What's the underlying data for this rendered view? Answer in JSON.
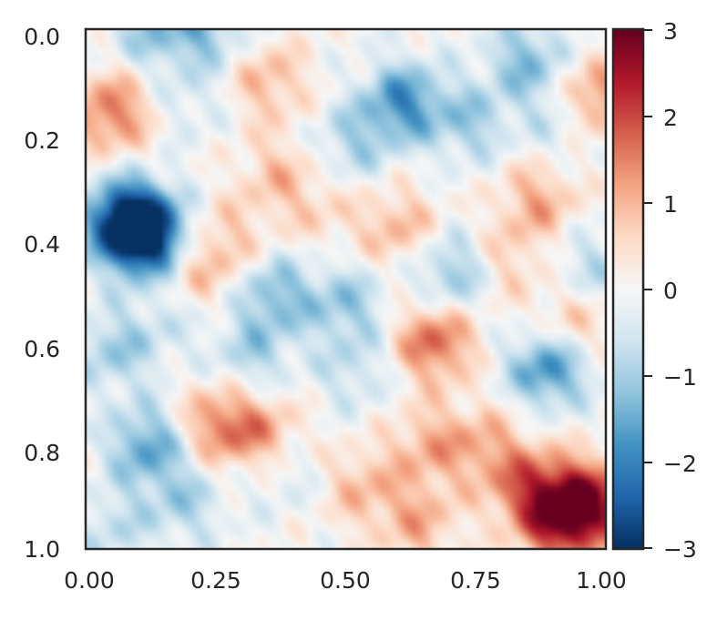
{
  "chart_data": {
    "type": "heatmap",
    "title": "",
    "xlabel": "",
    "ylabel": "",
    "xlim": [
      0.0,
      1.0
    ],
    "ylim": [
      1.0,
      0.0
    ],
    "x_ticks": [
      "0.00",
      "0.25",
      "0.50",
      "0.75",
      "1.00"
    ],
    "y_ticks": [
      "0.0",
      "0.2",
      "0.4",
      "0.6",
      "0.8",
      "1.0"
    ],
    "colormap": "RdBu_r",
    "color_range": [
      -3,
      3
    ],
    "colorbar": {
      "ticks": [
        "3",
        "2",
        "1",
        "0",
        "−1",
        "−2",
        "−3"
      ],
      "values": [
        3,
        2,
        1,
        0,
        -1,
        -2,
        -3
      ]
    },
    "grid": false,
    "features": [
      {
        "x": 0.08,
        "y": 0.37,
        "value": -3.0
      },
      {
        "x": 0.12,
        "y": 0.4,
        "value": -2.5
      },
      {
        "x": 0.05,
        "y": 0.16,
        "value": 1.6
      },
      {
        "x": 0.97,
        "y": 0.14,
        "value": 2.0
      },
      {
        "x": 0.96,
        "y": 0.91,
        "value": 2.6
      },
      {
        "x": 0.85,
        "y": 0.88,
        "value": 1.5
      },
      {
        "x": 0.91,
        "y": 0.95,
        "value": 1.8
      },
      {
        "x": 0.67,
        "y": 0.6,
        "value": 1.8
      },
      {
        "x": 0.89,
        "y": 0.65,
        "value": -2.0
      },
      {
        "x": 0.61,
        "y": 0.14,
        "value": -1.8
      },
      {
        "x": 0.74,
        "y": 0.18,
        "value": -1.0
      },
      {
        "x": 0.85,
        "y": 0.06,
        "value": -1.3
      },
      {
        "x": 0.93,
        "y": 0.17,
        "value": -1.2
      },
      {
        "x": 0.35,
        "y": 0.1,
        "value": 1.0
      },
      {
        "x": 0.23,
        "y": 0.0,
        "value": -1.2
      },
      {
        "x": 0.12,
        "y": 0.0,
        "value": -1.0
      },
      {
        "x": 0.6,
        "y": 0.38,
        "value": 1.0
      },
      {
        "x": 0.37,
        "y": 0.28,
        "value": 0.8
      },
      {
        "x": 0.87,
        "y": 0.33,
        "value": 1.1
      },
      {
        "x": 0.25,
        "y": 0.76,
        "value": 1.4
      },
      {
        "x": 0.34,
        "y": 0.78,
        "value": 1.2
      },
      {
        "x": 0.12,
        "y": 0.8,
        "value": -1.6
      },
      {
        "x": 0.05,
        "y": 0.62,
        "value": -1.0
      },
      {
        "x": 0.38,
        "y": 0.85,
        "value": -0.6
      },
      {
        "x": 0.36,
        "y": 0.51,
        "value": -1.3
      },
      {
        "x": 0.71,
        "y": 0.47,
        "value": -1.4
      },
      {
        "x": 0.5,
        "y": 0.53,
        "value": -1.1
      },
      {
        "x": 0.32,
        "y": 0.63,
        "value": -0.9
      },
      {
        "x": 0.52,
        "y": 0.66,
        "value": -0.7
      },
      {
        "x": 0.64,
        "y": 0.95,
        "value": 1.0
      },
      {
        "x": 0.77,
        "y": 0.8,
        "value": 0.9
      },
      {
        "x": 0.19,
        "y": 0.91,
        "value": -0.9
      },
      {
        "x": 0.05,
        "y": 0.96,
        "value": -0.7
      },
      {
        "x": 0.66,
        "y": 0.8,
        "value": 1.0
      },
      {
        "x": 0.53,
        "y": 0.88,
        "value": 0.9
      },
      {
        "x": 0.8,
        "y": 0.45,
        "value": 0.8
      },
      {
        "x": 0.22,
        "y": 0.46,
        "value": 0.9
      },
      {
        "x": 0.45,
        "y": 0.35,
        "value": 0.5
      },
      {
        "x": 0.51,
        "y": 0.22,
        "value": -0.9
      },
      {
        "x": 0.97,
        "y": 0.46,
        "value": -0.8
      },
      {
        "x": 0.93,
        "y": 0.57,
        "value": 1.0
      },
      {
        "x": 0.2,
        "y": 0.14,
        "value": -0.5
      },
      {
        "x": 0.15,
        "y": 0.57,
        "value": -0.5
      },
      {
        "x": 0.28,
        "y": 0.4,
        "value": 0.6
      }
    ]
  }
}
